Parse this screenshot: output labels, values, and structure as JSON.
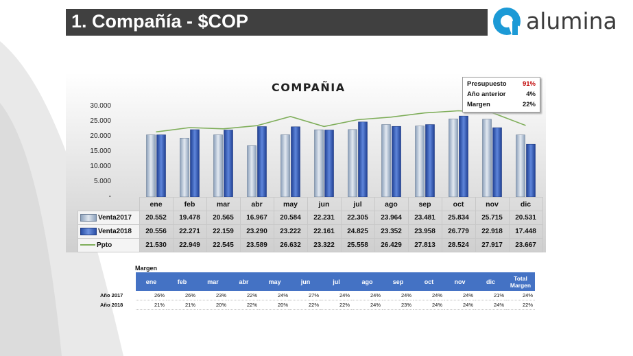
{
  "header": {
    "title": "1. Compañía - $COP"
  },
  "logo": {
    "text": "alumina"
  },
  "chart_data": {
    "type": "bar",
    "title": "COMPAÑIA",
    "categories": [
      "ene",
      "feb",
      "mar",
      "abr",
      "may",
      "jun",
      "jul",
      "ago",
      "sep",
      "oct",
      "nov",
      "dic"
    ],
    "ylim": [
      0,
      30000
    ],
    "yticks": [
      "30.000",
      "25.000",
      "20.000",
      "15.000",
      "10.000",
      "5.000",
      "-"
    ],
    "series": [
      {
        "name": "Venta2017",
        "kind": "bar",
        "color": "#a9b9cd",
        "values": [
          20552,
          19478,
          20565,
          16967,
          20584,
          22231,
          22305,
          23964,
          23481,
          25834,
          25715,
          20531
        ],
        "labels": [
          "20.552",
          "19.478",
          "20.565",
          "16.967",
          "20.584",
          "22.231",
          "22.305",
          "23.964",
          "23.481",
          "25.834",
          "25.715",
          "20.531"
        ]
      },
      {
        "name": "Venta2018",
        "kind": "bar",
        "color": "#2e56b5",
        "values": [
          20556,
          22271,
          22159,
          23290,
          23222,
          22161,
          24825,
          23352,
          23958,
          26779,
          22918,
          17448
        ],
        "labels": [
          "20.556",
          "22.271",
          "22.159",
          "23.290",
          "23.222",
          "22.161",
          "24.825",
          "23.352",
          "23.958",
          "26.779",
          "22.918",
          "17.448"
        ]
      },
      {
        "name": "Ppto",
        "kind": "line",
        "color": "#7fae5a",
        "values": [
          21530,
          22949,
          22545,
          23589,
          26632,
          23322,
          25558,
          26429,
          27813,
          28524,
          27917,
          23667
        ],
        "labels": [
          "21.530",
          "22.949",
          "22.545",
          "23.589",
          "26.632",
          "23.322",
          "25.558",
          "26.429",
          "27.813",
          "28.524",
          "27.917",
          "23.667"
        ]
      }
    ],
    "summary": [
      {
        "label": "Presupuesto",
        "value": "91%",
        "color": "#c00000"
      },
      {
        "label": "Año anterior",
        "value": "4%",
        "color": "#111111"
      },
      {
        "label": "Margen",
        "value": "22%",
        "color": "#111111"
      }
    ]
  },
  "margin_table": {
    "caption": "Margen",
    "headers": [
      "ene",
      "feb",
      "mar",
      "abr",
      "may",
      "jun",
      "jul",
      "ago",
      "sep",
      "oct",
      "nov",
      "dic",
      "Total Margen"
    ],
    "rows": [
      {
        "label": "Año 2017",
        "values": [
          "26%",
          "26%",
          "23%",
          "22%",
          "24%",
          "27%",
          "24%",
          "24%",
          "24%",
          "24%",
          "24%",
          "21%",
          "24%"
        ]
      },
      {
        "label": "Año 2018",
        "values": [
          "21%",
          "21%",
          "20%",
          "22%",
          "20%",
          "22%",
          "22%",
          "24%",
          "23%",
          "24%",
          "24%",
          "24%",
          "22%"
        ]
      }
    ]
  }
}
